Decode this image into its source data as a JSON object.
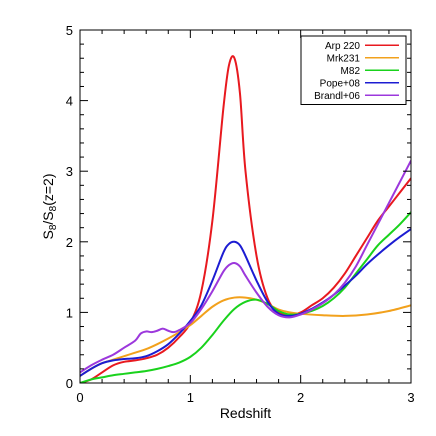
{
  "chart_data": {
    "type": "line",
    "xlabel": "Redshift",
    "ylabel": "S_8/S_8(z=2)",
    "ylabel_parts": {
      "s": "S",
      "sub1": "8",
      "mid": "/S",
      "sub2": "8",
      "tail": "(z=2)"
    },
    "xlim": [
      0,
      3
    ],
    "ylim": [
      0,
      5
    ],
    "x_ticks": [
      {
        "value": 0,
        "label": "0"
      },
      {
        "value": 1,
        "label": "1"
      },
      {
        "value": 2,
        "label": "2"
      },
      {
        "value": 3,
        "label": "3"
      }
    ],
    "y_ticks": [
      {
        "value": 0,
        "label": "0"
      },
      {
        "value": 1,
        "label": "1"
      },
      {
        "value": 2,
        "label": "2"
      },
      {
        "value": 3,
        "label": "3"
      },
      {
        "value": 4,
        "label": "4"
      },
      {
        "value": 5,
        "label": "5"
      }
    ],
    "legend_position": "top-right",
    "series": [
      {
        "name": "Arp 220",
        "color": "#e8191f",
        "points": [
          [
            0,
            0.0
          ],
          [
            0.1,
            0.05
          ],
          [
            0.2,
            0.15
          ],
          [
            0.3,
            0.25
          ],
          [
            0.4,
            0.3
          ],
          [
            0.5,
            0.32
          ],
          [
            0.6,
            0.35
          ],
          [
            0.7,
            0.4
          ],
          [
            0.8,
            0.5
          ],
          [
            0.9,
            0.65
          ],
          [
            1.0,
            0.85
          ],
          [
            1.1,
            1.3
          ],
          [
            1.2,
            2.3
          ],
          [
            1.3,
            3.9
          ],
          [
            1.35,
            4.5
          ],
          [
            1.4,
            4.6
          ],
          [
            1.45,
            4.1
          ],
          [
            1.5,
            3.0
          ],
          [
            1.6,
            1.8
          ],
          [
            1.7,
            1.2
          ],
          [
            1.8,
            1.0
          ],
          [
            1.9,
            0.97
          ],
          [
            2.0,
            1.0
          ],
          [
            2.1,
            1.1
          ],
          [
            2.2,
            1.2
          ],
          [
            2.3,
            1.35
          ],
          [
            2.4,
            1.55
          ],
          [
            2.5,
            1.8
          ],
          [
            2.6,
            2.05
          ],
          [
            2.7,
            2.3
          ],
          [
            2.8,
            2.5
          ],
          [
            2.9,
            2.7
          ],
          [
            3.0,
            2.9
          ]
        ]
      },
      {
        "name": "Mrk231",
        "color": "#f2a11c",
        "points": [
          [
            0,
            0.1
          ],
          [
            0.1,
            0.2
          ],
          [
            0.2,
            0.28
          ],
          [
            0.3,
            0.33
          ],
          [
            0.4,
            0.38
          ],
          [
            0.5,
            0.43
          ],
          [
            0.6,
            0.48
          ],
          [
            0.7,
            0.55
          ],
          [
            0.8,
            0.63
          ],
          [
            0.9,
            0.72
          ],
          [
            1.0,
            0.82
          ],
          [
            1.1,
            0.95
          ],
          [
            1.2,
            1.08
          ],
          [
            1.3,
            1.17
          ],
          [
            1.4,
            1.21
          ],
          [
            1.5,
            1.21
          ],
          [
            1.6,
            1.18
          ],
          [
            1.7,
            1.12
          ],
          [
            1.8,
            1.04
          ],
          [
            1.9,
            1.0
          ],
          [
            2.0,
            0.98
          ],
          [
            2.2,
            0.96
          ],
          [
            2.4,
            0.95
          ],
          [
            2.6,
            0.97
          ],
          [
            2.8,
            1.02
          ],
          [
            3.0,
            1.1
          ]
        ]
      },
      {
        "name": "M82",
        "color": "#19d21c",
        "points": [
          [
            0,
            0.0
          ],
          [
            0.1,
            0.05
          ],
          [
            0.2,
            0.08
          ],
          [
            0.3,
            0.11
          ],
          [
            0.4,
            0.13
          ],
          [
            0.5,
            0.15
          ],
          [
            0.6,
            0.17
          ],
          [
            0.7,
            0.2
          ],
          [
            0.8,
            0.24
          ],
          [
            0.9,
            0.29
          ],
          [
            1.0,
            0.37
          ],
          [
            1.1,
            0.5
          ],
          [
            1.2,
            0.68
          ],
          [
            1.3,
            0.88
          ],
          [
            1.4,
            1.05
          ],
          [
            1.5,
            1.15
          ],
          [
            1.6,
            1.18
          ],
          [
            1.7,
            1.12
          ],
          [
            1.8,
            1.02
          ],
          [
            1.9,
            0.97
          ],
          [
            2.0,
            0.98
          ],
          [
            2.1,
            1.02
          ],
          [
            2.2,
            1.09
          ],
          [
            2.3,
            1.2
          ],
          [
            2.4,
            1.35
          ],
          [
            2.5,
            1.55
          ],
          [
            2.6,
            1.75
          ],
          [
            2.7,
            1.95
          ],
          [
            2.8,
            2.1
          ],
          [
            2.9,
            2.25
          ],
          [
            3.0,
            2.42
          ]
        ]
      },
      {
        "name": "Pope+08",
        "color": "#1c1cd2",
        "points": [
          [
            0,
            0.1
          ],
          [
            0.1,
            0.2
          ],
          [
            0.2,
            0.28
          ],
          [
            0.3,
            0.32
          ],
          [
            0.4,
            0.34
          ],
          [
            0.5,
            0.35
          ],
          [
            0.6,
            0.38
          ],
          [
            0.7,
            0.45
          ],
          [
            0.8,
            0.55
          ],
          [
            0.9,
            0.7
          ],
          [
            1.0,
            0.88
          ],
          [
            1.1,
            1.1
          ],
          [
            1.2,
            1.45
          ],
          [
            1.3,
            1.85
          ],
          [
            1.35,
            1.97
          ],
          [
            1.4,
            2.0
          ],
          [
            1.45,
            1.95
          ],
          [
            1.5,
            1.8
          ],
          [
            1.6,
            1.45
          ],
          [
            1.7,
            1.15
          ],
          [
            1.8,
            0.98
          ],
          [
            1.9,
            0.95
          ],
          [
            2.0,
            0.98
          ],
          [
            2.1,
            1.05
          ],
          [
            2.2,
            1.14
          ],
          [
            2.3,
            1.25
          ],
          [
            2.4,
            1.38
          ],
          [
            2.5,
            1.52
          ],
          [
            2.6,
            1.68
          ],
          [
            2.7,
            1.82
          ],
          [
            2.8,
            1.95
          ],
          [
            2.9,
            2.07
          ],
          [
            3.0,
            2.18
          ]
        ]
      },
      {
        "name": "Brandl+06",
        "color": "#9c38dc",
        "points": [
          [
            0,
            0.15
          ],
          [
            0.1,
            0.25
          ],
          [
            0.2,
            0.33
          ],
          [
            0.3,
            0.4
          ],
          [
            0.4,
            0.5
          ],
          [
            0.5,
            0.6
          ],
          [
            0.55,
            0.7
          ],
          [
            0.6,
            0.73
          ],
          [
            0.65,
            0.72
          ],
          [
            0.7,
            0.74
          ],
          [
            0.75,
            0.77
          ],
          [
            0.8,
            0.74
          ],
          [
            0.85,
            0.72
          ],
          [
            0.9,
            0.75
          ],
          [
            1.0,
            0.85
          ],
          [
            1.1,
            1.05
          ],
          [
            1.2,
            1.3
          ],
          [
            1.3,
            1.58
          ],
          [
            1.35,
            1.67
          ],
          [
            1.4,
            1.7
          ],
          [
            1.45,
            1.65
          ],
          [
            1.5,
            1.52
          ],
          [
            1.6,
            1.28
          ],
          [
            1.7,
            1.08
          ],
          [
            1.8,
            0.96
          ],
          [
            1.9,
            0.93
          ],
          [
            2.0,
            0.97
          ],
          [
            2.1,
            1.04
          ],
          [
            2.2,
            1.13
          ],
          [
            2.3,
            1.25
          ],
          [
            2.4,
            1.42
          ],
          [
            2.5,
            1.65
          ],
          [
            2.6,
            1.95
          ],
          [
            2.7,
            2.25
          ],
          [
            2.8,
            2.55
          ],
          [
            2.9,
            2.85
          ],
          [
            3.0,
            3.15
          ]
        ]
      }
    ]
  }
}
